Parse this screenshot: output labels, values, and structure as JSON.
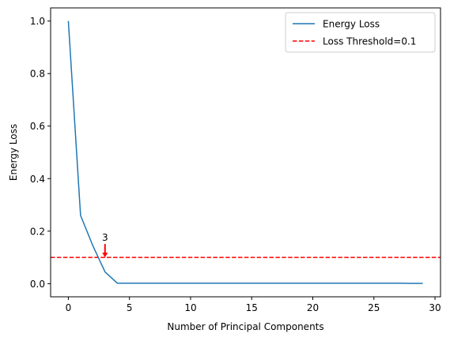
{
  "chart_data": {
    "type": "line",
    "xlabel": "Number of Principal Components",
    "ylabel": "Energy Loss",
    "xlim": [
      -1.45,
      30.45
    ],
    "ylim": [
      -0.05,
      1.05
    ],
    "xticks": [
      0,
      5,
      10,
      15,
      20,
      25,
      30
    ],
    "yticks": [
      0.0,
      0.2,
      0.4,
      0.6,
      0.8,
      1.0
    ],
    "xtick_labels": [
      "0",
      "5",
      "10",
      "15",
      "20",
      "25",
      "30"
    ],
    "ytick_labels": [
      "0.0",
      "0.2",
      "0.4",
      "0.6",
      "0.8",
      "1.0"
    ],
    "grid": false,
    "legend_position": "top-right",
    "series": [
      {
        "name": "Energy Loss",
        "color": "#1f77b4",
        "style": "solid",
        "x": [
          0,
          1,
          2,
          3,
          4,
          5,
          6,
          7,
          8,
          9,
          10,
          11,
          12,
          13,
          14,
          15,
          16,
          17,
          18,
          19,
          20,
          21,
          22,
          23,
          24,
          25,
          26,
          27,
          27,
          28,
          29
        ],
        "y": [
          1.0,
          0.26,
          0.145,
          0.045,
          0.002,
          0.002,
          0.002,
          0.002,
          0.002,
          0.002,
          0.002,
          0.002,
          0.002,
          0.002,
          0.002,
          0.002,
          0.002,
          0.002,
          0.002,
          0.002,
          0.002,
          0.002,
          0.002,
          0.002,
          0.002,
          0.002,
          0.002,
          0.002,
          0.002,
          0.001,
          0.001
        ]
      }
    ],
    "threshold": {
      "name": "Loss Threshold=0.1",
      "value": 0.1,
      "color": "#ff0000",
      "style": "dashed"
    },
    "annotation": {
      "text": "3",
      "x": 3,
      "y_tip": 0.1,
      "y_tail": 0.145,
      "color": "#ff0000"
    }
  }
}
